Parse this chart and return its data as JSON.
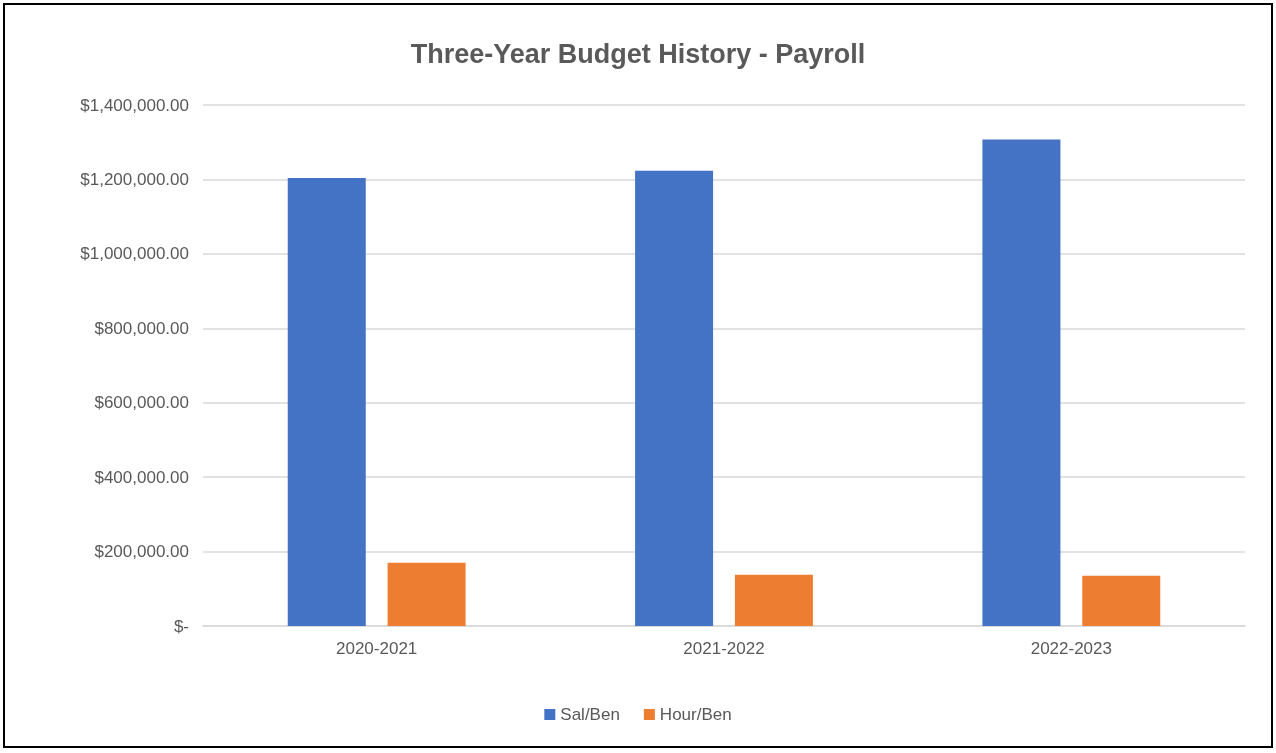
{
  "chart_data": {
    "type": "bar",
    "title": "Three-Year Budget History - Payroll",
    "categories": [
      "2020-2021",
      "2021-2022",
      "2022-2023"
    ],
    "series": [
      {
        "name": "Sal/Ben",
        "color": "#4472c4",
        "values": [
          1204000,
          1223000,
          1307000
        ]
      },
      {
        "name": "Hour/Ben",
        "color": "#ed7d31",
        "values": [
          170000,
          138000,
          135000
        ]
      }
    ],
    "ylim": [
      0,
      1400000
    ],
    "yticks": [
      {
        "value": 0,
        "label": "$-"
      },
      {
        "value": 200000,
        "label": "$200,000.00"
      },
      {
        "value": 400000,
        "label": "$400,000.00"
      },
      {
        "value": 600000,
        "label": "$600,000.00"
      },
      {
        "value": 800000,
        "label": "$800,000.00"
      },
      {
        "value": 1000000,
        "label": "$1,000,000.00"
      },
      {
        "value": 1200000,
        "label": "$1,200,000.00"
      },
      {
        "value": 1400000,
        "label": "$1,400,000.00"
      }
    ],
    "grid": "y",
    "legend": "bottom"
  }
}
